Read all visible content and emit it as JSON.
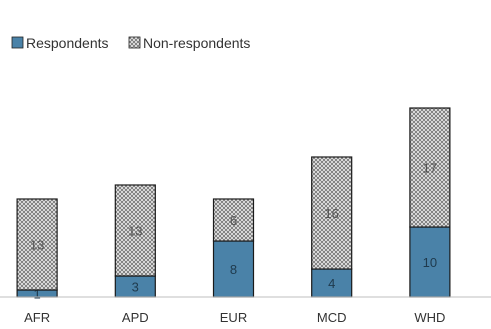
{
  "chart_data": {
    "type": "bar",
    "stacked": true,
    "categories": [
      "AFR",
      "APD",
      "EUR",
      "MCD",
      "WHD"
    ],
    "series": [
      {
        "name": "Respondents",
        "values": [
          1,
          3,
          8,
          4,
          10
        ],
        "color": "#4a82a8",
        "pattern": "solid"
      },
      {
        "name": "Non-respondents",
        "values": [
          13,
          13,
          6,
          16,
          17
        ],
        "color": "#d9d9d9",
        "pattern": "cross-hatch"
      }
    ],
    "legend_position": "top-left",
    "ylim": [
      0,
      27
    ],
    "grid": false
  }
}
